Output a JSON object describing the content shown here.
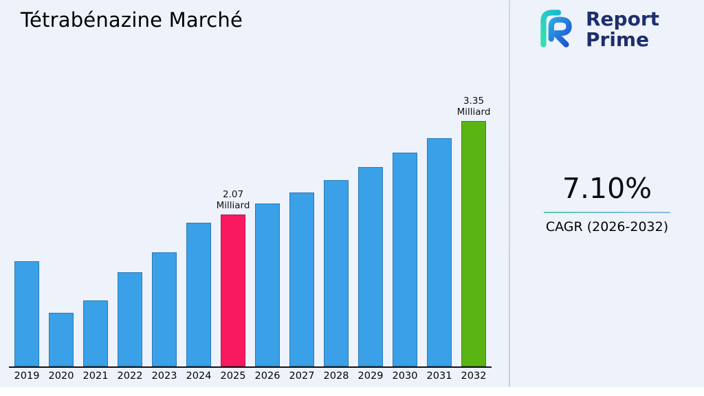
{
  "page": {
    "background": "#eef2fa"
  },
  "title": "Tétrabénazine Marché",
  "logo": {
    "name": "Report Prime",
    "line1": "Report",
    "line2": "Prime",
    "teal": "#2bd4ac",
    "blue": "#1f55d6",
    "navy": "#1e2f6e"
  },
  "stats": {
    "cagr_value": "7.10%",
    "cagr_label": "CAGR (2026-2032)"
  },
  "chart_data": {
    "type": "bar",
    "title": "Tétrabénazine Marché",
    "unit": "Milliard",
    "categories": [
      "2019",
      "2020",
      "2021",
      "2022",
      "2023",
      "2024",
      "2025",
      "2026",
      "2027",
      "2028",
      "2029",
      "2030",
      "2031",
      "2032"
    ],
    "values": [
      1.44,
      0.73,
      0.9,
      1.29,
      1.56,
      1.96,
      2.07,
      2.22,
      2.37,
      2.54,
      2.72,
      2.92,
      3.12,
      3.35
    ],
    "ylim": [
      0,
      3.35
    ],
    "xlabel": "",
    "ylabel": "",
    "grid": false,
    "legend": "none",
    "annotations": [
      {
        "index": 6,
        "lines": [
          "2.07",
          "Milliard"
        ]
      },
      {
        "index": 13,
        "lines": [
          "3.35",
          "Milliard"
        ]
      }
    ],
    "colors": {
      "default": "#3aa1e8",
      "highlights": {
        "6": "#f9195f",
        "13": "#5ab414"
      }
    }
  }
}
